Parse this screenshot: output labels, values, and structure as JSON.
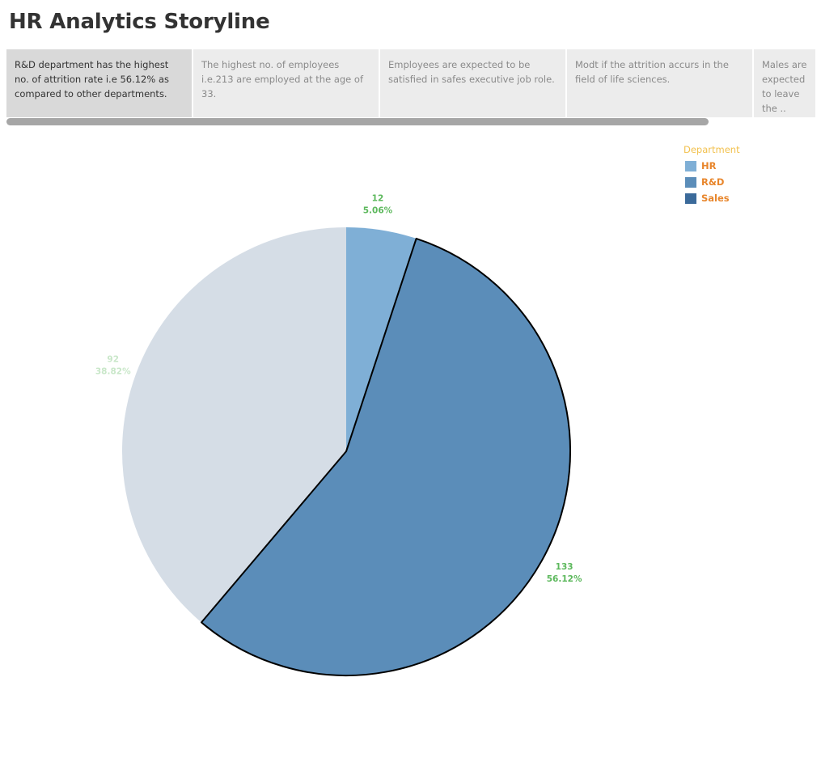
{
  "title": "HR Analytics Storyline",
  "story_points": [
    {
      "text": "R&D department has the highest no. of attrition rate i.e 56.12% as compared to other departments.",
      "selected": true
    },
    {
      "text": "The highest no. of employees i.e.213 are employed at the age of 33.",
      "selected": false
    },
    {
      "text": "Employees are expected to be satisfied in safes executive job role.",
      "selected": false
    },
    {
      "text": "Modt if the attrition accurs in the field of life sciences.",
      "selected": false
    },
    {
      "text": "Males are expected to leave the ..",
      "selected": false
    }
  ],
  "legend": {
    "title": "Department",
    "items": [
      {
        "label": "HR",
        "color": "#7fafd6"
      },
      {
        "label": "R&D",
        "color": "#5b8db9"
      },
      {
        "label": "Sales",
        "color": "#3b6a9a"
      }
    ]
  },
  "chart_data": {
    "type": "pie",
    "legend_title": "Department",
    "categories": [
      "HR",
      "R&D",
      "Sales"
    ],
    "values": [
      12,
      133,
      92
    ],
    "percent_labels": [
      "5.06%",
      "56.12%",
      "38.82%"
    ],
    "colors": [
      "#7fafd6",
      "#5b8db9",
      "#d5dde6"
    ],
    "highlighted": "R&D",
    "label_color": "#5cb85c",
    "dimmed_label_color": "#c9e7c9",
    "legend_position": "top-right"
  }
}
